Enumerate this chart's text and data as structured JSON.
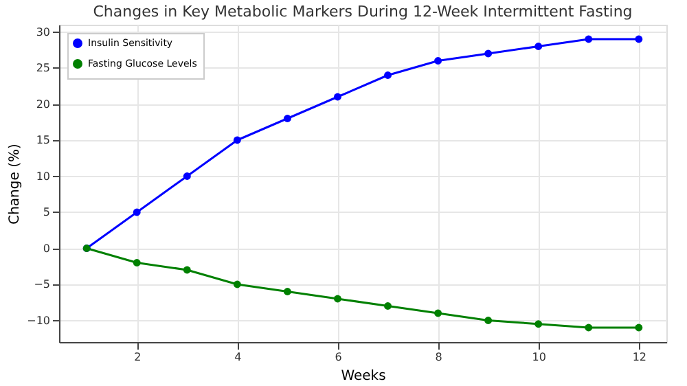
{
  "chart_data": {
    "type": "line",
    "title": "Changes in Key Metabolic Markers During 12-Week Intermittent Fasting",
    "xlabel": "Weeks",
    "ylabel": "Change (%)",
    "x": [
      1,
      2,
      3,
      4,
      5,
      6,
      7,
      8,
      9,
      10,
      11,
      12
    ],
    "series": [
      {
        "name": "Insulin Sensitivity",
        "color": "#0000ff",
        "values": [
          0,
          5,
          10,
          15,
          18,
          21,
          24,
          26,
          27,
          28,
          29,
          29
        ]
      },
      {
        "name": "Fasting Glucose Levels",
        "color": "#008000",
        "values": [
          0,
          -2,
          -3,
          -5,
          -6,
          -7,
          -8,
          -9,
          -10,
          -10.5,
          -11,
          -11
        ]
      }
    ],
    "xlim": [
      0.45,
      12.55
    ],
    "ylim": [
      -13,
      31
    ],
    "xticks": [
      2,
      4,
      6,
      8,
      10,
      12
    ],
    "yticks": [
      -10,
      -5,
      0,
      5,
      10,
      15,
      20,
      25,
      30
    ],
    "grid": true,
    "legend": "top left",
    "marker": "circle",
    "line_style": "solid"
  }
}
